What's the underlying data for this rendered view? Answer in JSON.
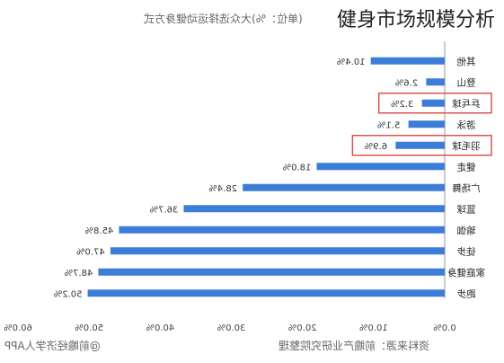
{
  "overlay_title": "健身市场规模分析",
  "mirrored_header": "(单位：%)大众选择运动健身方式",
  "mirrored_footer_source": "资料来源：前瞻产业研究院整理",
  "mirrored_footer_logo": "@前瞻经济学人APP",
  "highlight_color": "#d9534f",
  "bar_color": "#3b7dd8",
  "chart_data": {
    "type": "bar",
    "orientation": "horizontal-mirrored",
    "title": "大众选择运动健身方式",
    "unit": "%",
    "xlim": [
      0,
      60
    ],
    "x_ticks": [
      "0.0%",
      "10.0%",
      "20.0%",
      "30.0%",
      "40.0%",
      "50.0%",
      "60.0%"
    ],
    "categories": [
      "其他",
      "登山",
      "乒乓球",
      "游泳",
      "羽毛球",
      "健走",
      "广场舞",
      "篮球",
      "瑜伽",
      "徒步",
      "家庭健身",
      "跑步"
    ],
    "values": [
      10.4,
      2.6,
      3.2,
      5.1,
      6.9,
      18.0,
      28.4,
      36.7,
      45.8,
      47.0,
      48.7,
      50.2
    ],
    "value_labels": [
      "10.4%",
      "2.6%",
      "3.2%",
      "5.1%",
      "6.9%",
      "18.0%",
      "28.4%",
      "36.7%",
      "45.8%",
      "47.0%",
      "48.7%",
      "50.2%"
    ],
    "highlighted": [
      "乒乓球",
      "羽毛球"
    ]
  }
}
